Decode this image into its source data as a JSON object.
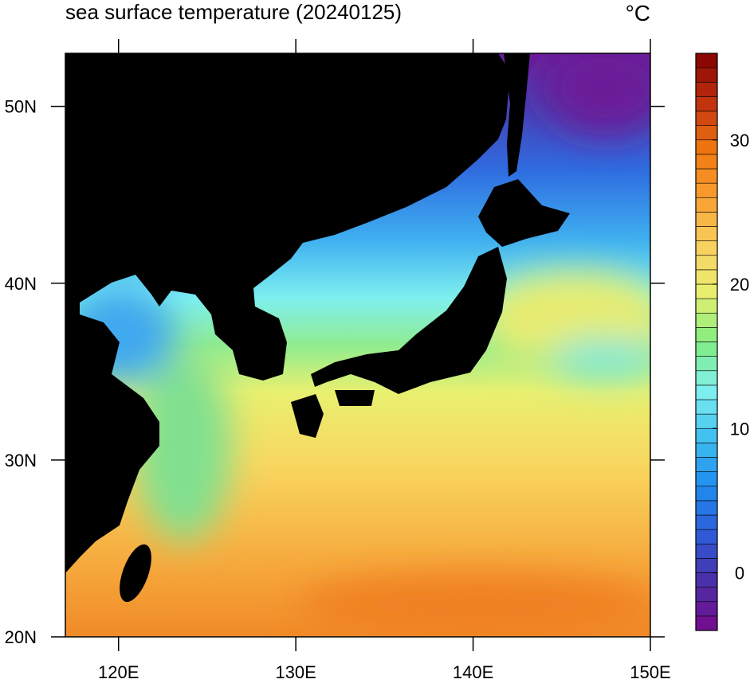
{
  "map": {
    "title": "sea surface temperature (20240125)",
    "units": "°C",
    "xlim": [
      117,
      150
    ],
    "ylim": [
      20,
      53
    ],
    "xticks": [
      {
        "value": 120,
        "label": "120E"
      },
      {
        "value": 130,
        "label": "130E"
      },
      {
        "value": 140,
        "label": "140E"
      },
      {
        "value": 150,
        "label": "150E"
      }
    ],
    "yticks": [
      {
        "value": 20,
        "label": "20N"
      },
      {
        "value": 30,
        "label": "30N"
      },
      {
        "value": 40,
        "label": "40N"
      },
      {
        "value": 50,
        "label": "50N"
      }
    ],
    "colorbar": {
      "lim": [
        -4,
        36
      ],
      "ticks": [
        0,
        10,
        20,
        30
      ],
      "colormap": [
        "#780a8c",
        "#4a2fa8",
        "#2f5bd8",
        "#1e8cf0",
        "#3fc0f0",
        "#80f0f0",
        "#80ec80",
        "#e8f070",
        "#f8d060",
        "#f8a030",
        "#f07810",
        "#c03010",
        "#800000"
      ]
    }
  }
}
